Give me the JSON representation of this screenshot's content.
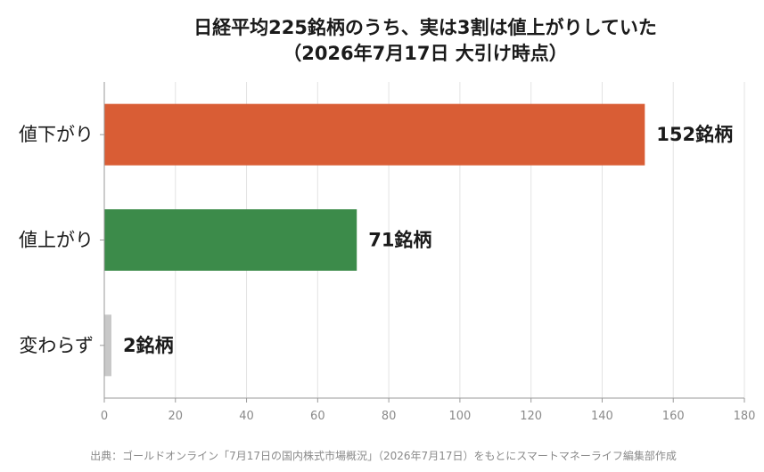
{
  "chart_data": {
    "type": "bar",
    "orientation": "horizontal",
    "title_line1": "日経平均225銘柄のうち、実は3割は値上がりしていた",
    "title_line2": "（2026年7月17日 大引け時点）",
    "categories": [
      "値下がり",
      "値上がり",
      "変わらず"
    ],
    "values": [
      152,
      71,
      2
    ],
    "value_labels": [
      "152銘柄",
      "71銘柄",
      "2銘柄"
    ],
    "colors": [
      "#d95d35",
      "#3c8b4a",
      "#c8c8c8"
    ],
    "xlim": [
      0,
      180
    ],
    "xticks": [
      "0",
      "20",
      "40",
      "60",
      "80",
      "100",
      "120",
      "140",
      "160",
      "180"
    ],
    "grid": true,
    "xlabel": "",
    "ylabel": ""
  },
  "source": "出典：ゴールドオンライン「7月17日の国内株式市場概況」（2026年7月17日）をもとにスマートマネーライフ編集部作成"
}
